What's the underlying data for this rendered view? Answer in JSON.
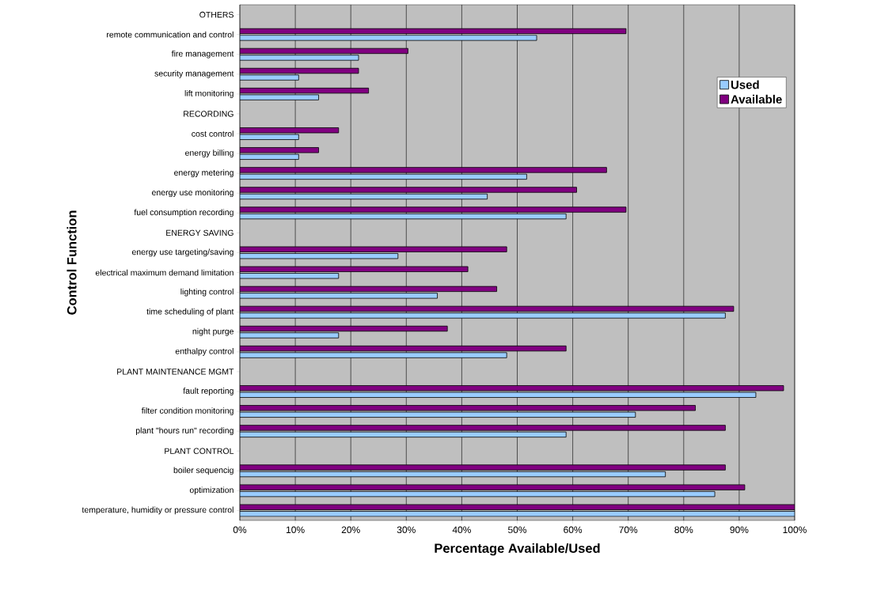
{
  "chart_data": {
    "type": "bar",
    "orientation": "horizontal",
    "xlabel": "Percentage Available/Used",
    "ylabel": "Control Function",
    "categories": [
      "OTHERS",
      "remote communication and control",
      "fire management",
      "security management",
      "lift monitoring",
      "RECORDING",
      "cost control",
      "energy billing",
      "energy metering",
      "energy use monitoring",
      "fuel consumption recording",
      "ENERGY SAVING",
      "energy use targeting/saving",
      "electrical maximum demand limitation",
      "lighting control",
      "time scheduling of plant",
      "night purge",
      "enthalpy control",
      "PLANT MAINTENANCE MGMT",
      "fault reporting",
      "filter condition monitoring",
      "plant \"hours run\" recording",
      "PLANT CONTROL",
      "boiler sequencig",
      "optimization",
      "temperature, humidity or pressure control"
    ],
    "series": [
      {
        "name": "Used",
        "color": "#99ccff",
        "values": [
          null,
          53.5,
          21.4,
          10.6,
          14.2,
          null,
          10.6,
          10.6,
          51.7,
          44.6,
          58.8,
          null,
          28.5,
          17.8,
          35.6,
          87.5,
          17.8,
          48.1,
          null,
          93,
          71.3,
          58.8,
          null,
          76.7,
          85.6,
          100
        ]
      },
      {
        "name": "Available",
        "color": "#800080",
        "values": [
          null,
          69.6,
          30.3,
          21.4,
          23.2,
          null,
          17.8,
          14.2,
          66.1,
          60.7,
          69.6,
          null,
          48.1,
          41.1,
          46.3,
          89,
          37.4,
          58.8,
          null,
          98,
          82.1,
          87.5,
          null,
          87.5,
          91,
          100
        ]
      }
    ],
    "xlim": [
      0,
      100
    ],
    "xticks": [
      {
        "value": 0,
        "label": "0%"
      },
      {
        "value": 10,
        "label": "10%"
      },
      {
        "value": 20,
        "label": "20%"
      },
      {
        "value": 30,
        "label": "30%"
      },
      {
        "value": 40,
        "label": "40%"
      },
      {
        "value": 50,
        "label": "50%"
      },
      {
        "value": 60,
        "label": "60%"
      },
      {
        "value": 70,
        "label": "70%"
      },
      {
        "value": 80,
        "label": "80%"
      },
      {
        "value": 90,
        "label": "90%"
      },
      {
        "value": 100,
        "label": "100%"
      }
    ],
    "grid": "x",
    "legend": "top right"
  }
}
